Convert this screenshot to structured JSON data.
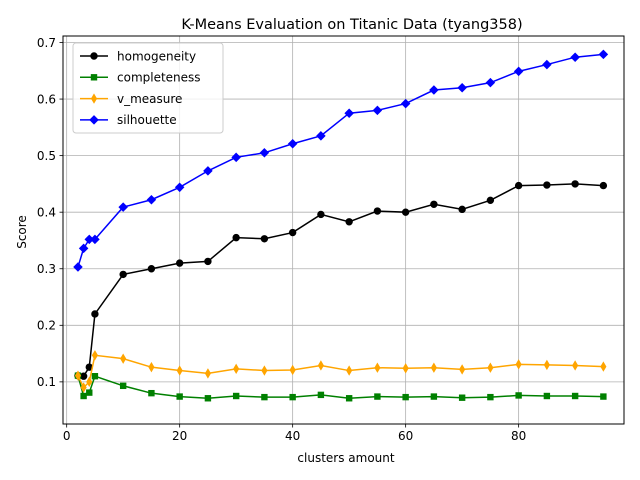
{
  "chart_data": {
    "type": "line",
    "title": "K-Means Evaluation on Titanic Data (tyang358)",
    "xlabel": "clusters amount",
    "ylabel": "Score",
    "xlim": [
      -0.65,
      98.65
    ],
    "ylim": [
      0.0255,
      0.7115
    ],
    "xticks": [
      0,
      20,
      40,
      60,
      80
    ],
    "yticks": [
      0.1,
      0.2,
      0.3,
      0.4,
      0.5,
      0.6,
      0.7
    ],
    "xtick_labels": [
      "0",
      "20",
      "40",
      "60",
      "80"
    ],
    "ytick_labels": [
      "0.1",
      "0.2",
      "0.3",
      "0.4",
      "0.5",
      "0.6",
      "0.7"
    ],
    "grid": true,
    "legend_position": "upper-left",
    "x": [
      2,
      3,
      4,
      5,
      10,
      15,
      20,
      25,
      30,
      35,
      40,
      45,
      50,
      55,
      60,
      65,
      70,
      75,
      80,
      85,
      90,
      95
    ],
    "series": [
      {
        "name": "homogeneity",
        "color": "#000000",
        "marker": "circle",
        "values": [
          0.111,
          0.11,
          0.126,
          0.22,
          0.29,
          0.3,
          0.31,
          0.313,
          0.355,
          0.353,
          0.364,
          0.396,
          0.383,
          0.402,
          0.4,
          0.414,
          0.405,
          0.421,
          0.447,
          0.448,
          0.45,
          0.447
        ]
      },
      {
        "name": "completeness",
        "color": "#008000",
        "marker": "square",
        "values": [
          0.111,
          0.075,
          0.081,
          0.11,
          0.093,
          0.08,
          0.074,
          0.071,
          0.075,
          0.073,
          0.073,
          0.077,
          0.071,
          0.074,
          0.073,
          0.074,
          0.072,
          0.073,
          0.076,
          0.075,
          0.075,
          0.074
        ]
      },
      {
        "name": "v_measure",
        "color": "#ffa500",
        "marker": "thin-diamond",
        "values": [
          0.111,
          0.09,
          0.1,
          0.147,
          0.141,
          0.126,
          0.12,
          0.115,
          0.123,
          0.12,
          0.121,
          0.129,
          0.12,
          0.125,
          0.124,
          0.125,
          0.122,
          0.125,
          0.131,
          0.13,
          0.129,
          0.127
        ]
      },
      {
        "name": "silhouette",
        "color": "#0000ff",
        "marker": "diamond",
        "values": [
          0.303,
          0.336,
          0.352,
          0.352,
          0.409,
          0.422,
          0.444,
          0.473,
          0.497,
          0.505,
          0.521,
          0.535,
          0.575,
          0.58,
          0.592,
          0.616,
          0.62,
          0.629,
          0.649,
          0.661,
          0.674,
          0.679
        ]
      }
    ]
  }
}
